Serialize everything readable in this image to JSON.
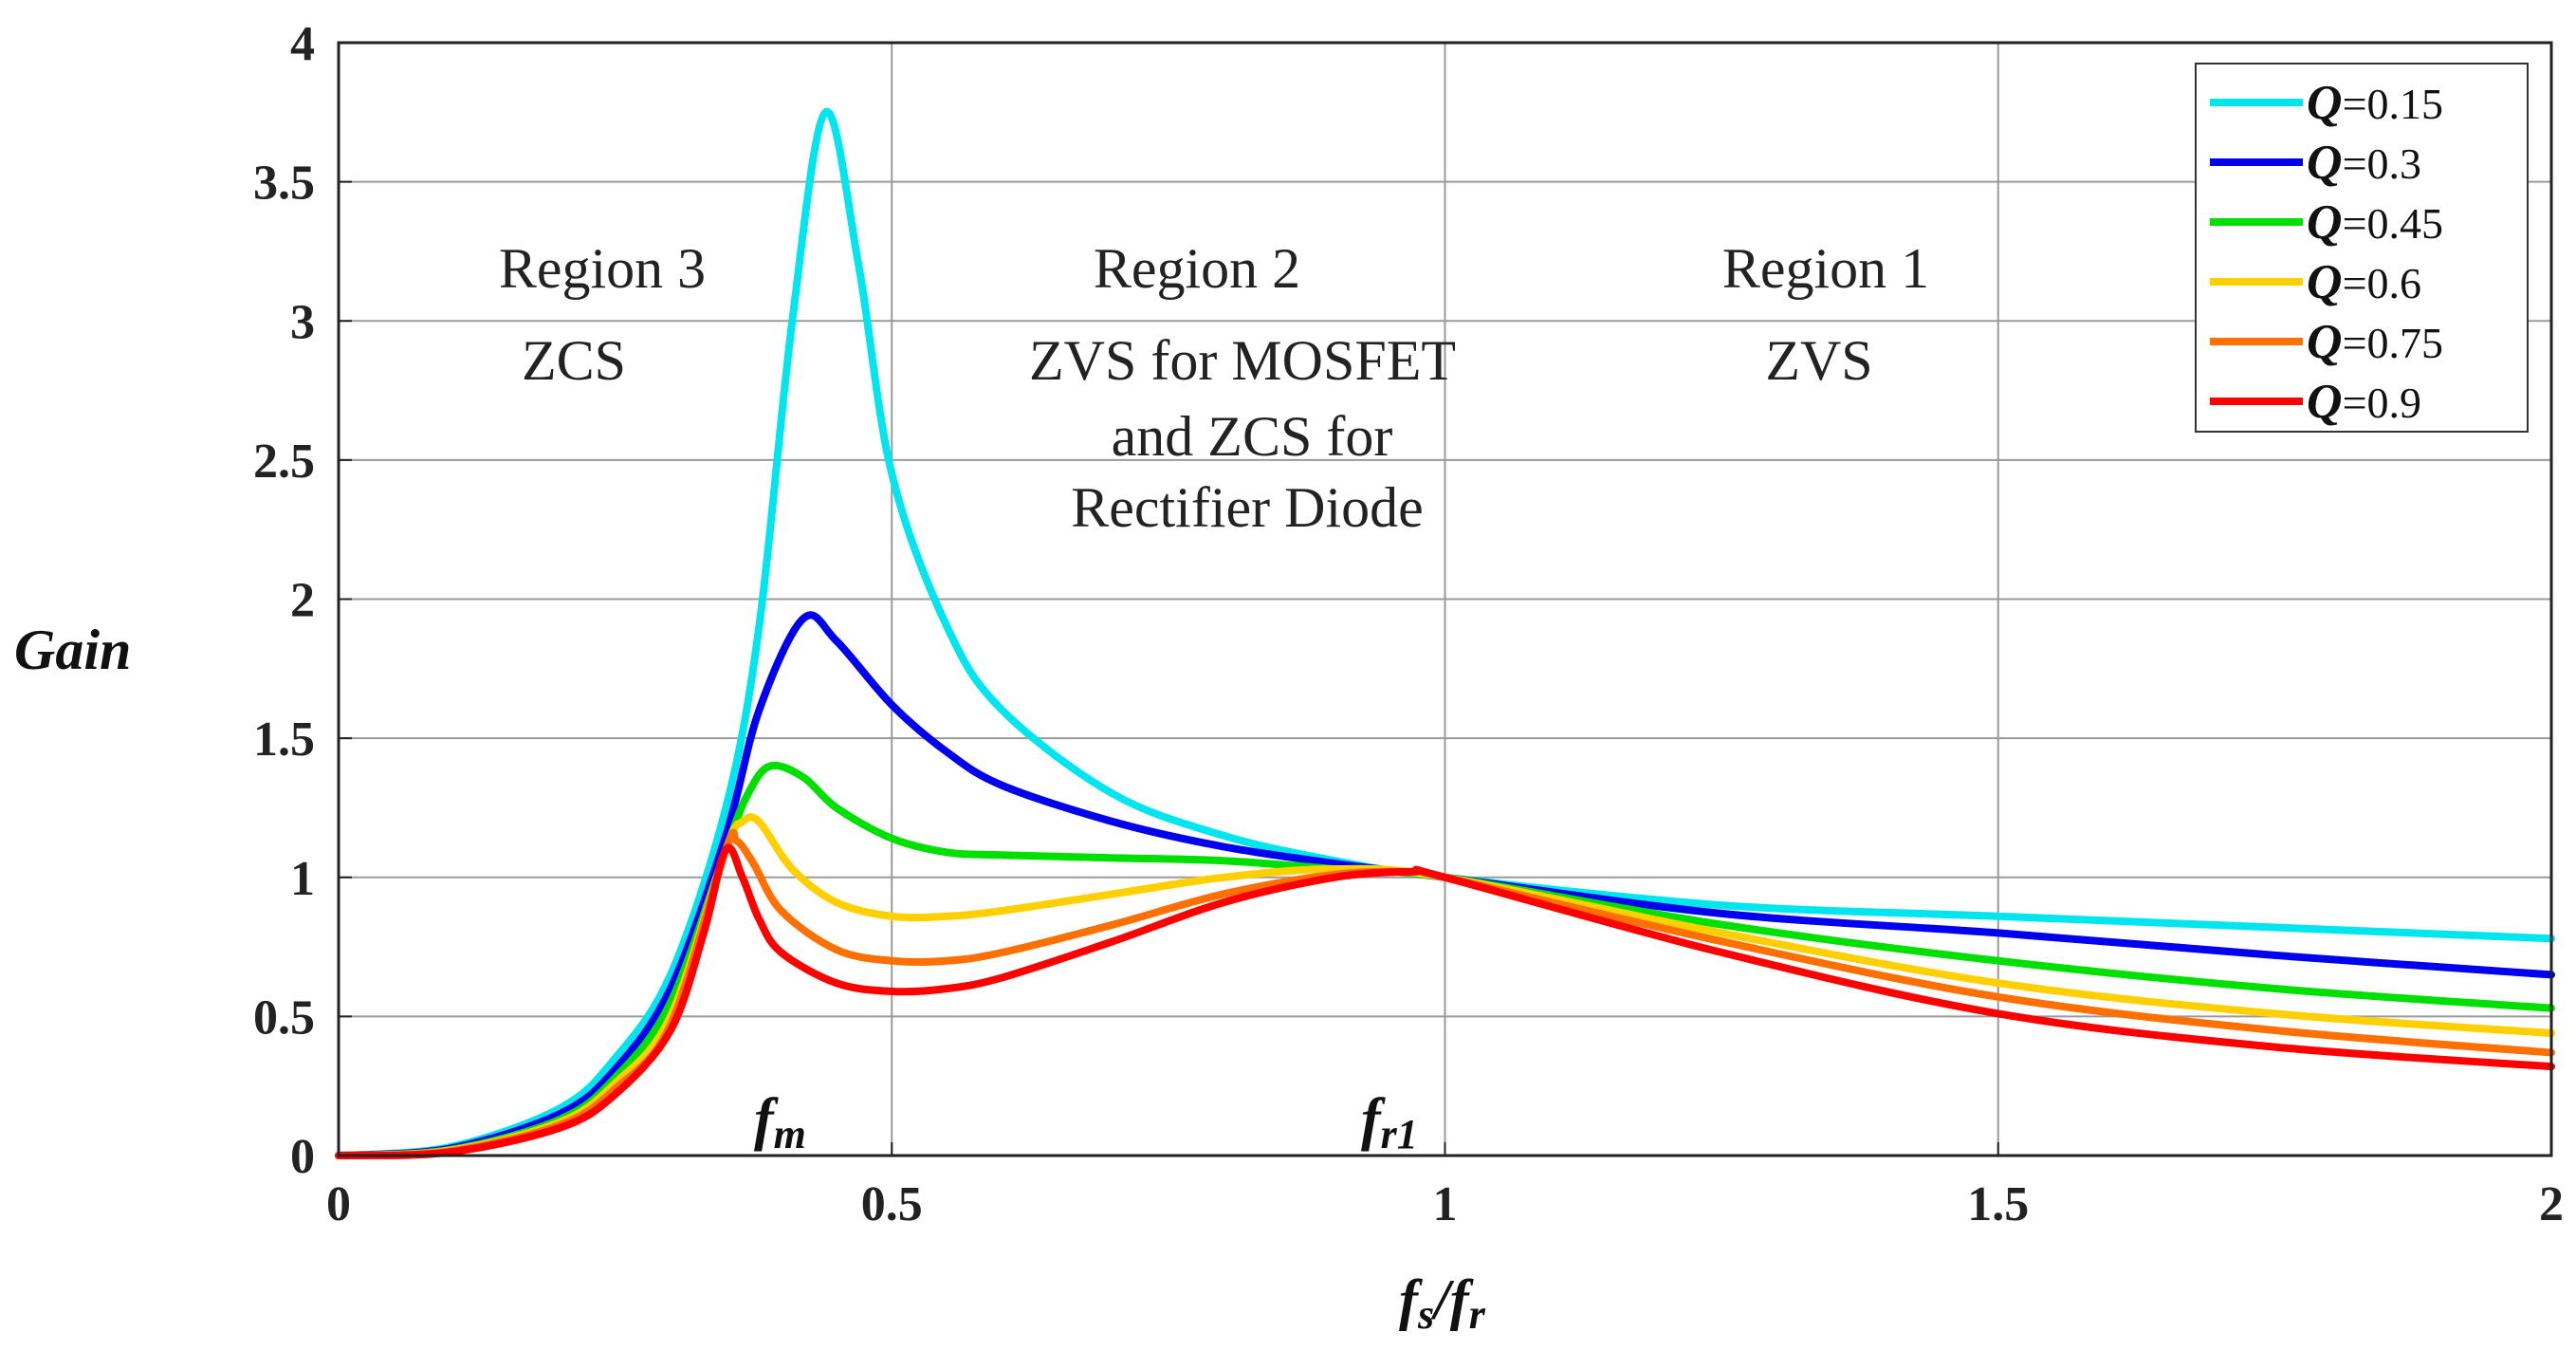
{
  "chart_data": {
    "type": "line",
    "xlabel": "fs/fr",
    "xlabel_main": "f",
    "xlabel_sub1": "s",
    "xlabel_sep": "/f",
    "xlabel_sub2": "r",
    "ylabel": "Gain",
    "xlim": [
      0,
      2
    ],
    "ylim": [
      0,
      4
    ],
    "xticks": [
      "0",
      "0.5",
      "1",
      "1.5",
      "2"
    ],
    "yticks": [
      "0",
      "0.5",
      "1",
      "1.5",
      "2",
      "2.5",
      "3",
      "3.5",
      "4"
    ],
    "grid": true,
    "legend_position": "top-right",
    "legend_prefix": "Q",
    "series": [
      {
        "name": "=0.15",
        "color": "#00e5ee",
        "x": [
          0,
          0.1,
          0.2,
          0.25,
          0.3,
          0.35,
          0.38,
          0.41,
          0.44,
          0.47,
          0.5,
          0.55,
          0.6,
          0.7,
          0.8,
          0.9,
          1.0,
          1.25,
          1.5,
          1.75,
          2.0
        ],
        "y": [
          0,
          0.03,
          0.17,
          0.35,
          0.65,
          1.25,
          1.9,
          3.0,
          3.75,
          3.2,
          2.45,
          1.9,
          1.6,
          1.3,
          1.15,
          1.06,
          1.0,
          0.9,
          0.86,
          0.82,
          0.78
        ]
      },
      {
        "name": "=0.3",
        "color": "#0000ee",
        "x": [
          0,
          0.1,
          0.2,
          0.25,
          0.3,
          0.35,
          0.38,
          0.42,
          0.45,
          0.5,
          0.55,
          0.6,
          0.7,
          0.8,
          0.9,
          1.0,
          1.25,
          1.5,
          1.75,
          2.0
        ],
        "y": [
          0,
          0.025,
          0.15,
          0.31,
          0.6,
          1.15,
          1.6,
          1.93,
          1.85,
          1.62,
          1.45,
          1.33,
          1.2,
          1.11,
          1.05,
          1.0,
          0.87,
          0.8,
          0.72,
          0.65
        ]
      },
      {
        "name": "=0.45",
        "color": "#00e000",
        "x": [
          0,
          0.1,
          0.2,
          0.25,
          0.3,
          0.35,
          0.37,
          0.39,
          0.42,
          0.45,
          0.5,
          0.55,
          0.6,
          0.7,
          0.8,
          0.9,
          1.0,
          1.25,
          1.5,
          1.75,
          2.0
        ],
        "y": [
          0,
          0.02,
          0.13,
          0.28,
          0.55,
          1.1,
          1.3,
          1.4,
          1.36,
          1.25,
          1.14,
          1.09,
          1.08,
          1.07,
          1.06,
          1.03,
          1.0,
          0.83,
          0.7,
          0.6,
          0.53
        ]
      },
      {
        "name": "=0.6",
        "color": "#ffd000",
        "x": [
          0,
          0.1,
          0.2,
          0.25,
          0.3,
          0.35,
          0.365,
          0.38,
          0.41,
          0.45,
          0.5,
          0.55,
          0.6,
          0.7,
          0.8,
          0.9,
          1.0,
          1.25,
          1.5,
          1.75,
          2.0
        ],
        "y": [
          0,
          0.018,
          0.12,
          0.26,
          0.5,
          1.1,
          1.2,
          1.2,
          1.03,
          0.91,
          0.86,
          0.86,
          0.88,
          0.94,
          1.0,
          1.03,
          1.0,
          0.8,
          0.62,
          0.51,
          0.44
        ]
      },
      {
        "name": "=0.75",
        "color": "#ff7000",
        "x": [
          0,
          0.1,
          0.2,
          0.25,
          0.3,
          0.35,
          0.36,
          0.375,
          0.4,
          0.45,
          0.5,
          0.55,
          0.6,
          0.7,
          0.8,
          0.9,
          0.97,
          1.0,
          1.25,
          1.5,
          1.75,
          2.0
        ],
        "y": [
          0,
          0.015,
          0.11,
          0.24,
          0.47,
          1.1,
          1.13,
          1.05,
          0.88,
          0.74,
          0.7,
          0.7,
          0.73,
          0.83,
          0.94,
          1.01,
          1.02,
          1.0,
          0.77,
          0.57,
          0.45,
          0.37
        ]
      },
      {
        "name": "=0.9",
        "color": "#ff0000",
        "x": [
          0,
          0.1,
          0.2,
          0.25,
          0.3,
          0.33,
          0.35,
          0.365,
          0.38,
          0.4,
          0.45,
          0.5,
          0.55,
          0.6,
          0.7,
          0.8,
          0.9,
          0.97,
          1.0,
          1.25,
          1.5,
          1.75,
          2.0
        ],
        "y": [
          0,
          0.012,
          0.1,
          0.22,
          0.45,
          0.8,
          1.1,
          1.0,
          0.85,
          0.73,
          0.62,
          0.59,
          0.6,
          0.64,
          0.77,
          0.91,
          1.0,
          1.02,
          1.0,
          0.73,
          0.51,
          0.39,
          0.32
        ]
      }
    ],
    "regions": [
      {
        "title": "Region 3",
        "lines": [
          "ZCS"
        ]
      },
      {
        "title": "Region 2",
        "lines": [
          "ZVS for MOSFET",
          "and ZCS for",
          "Rectifier Diode"
        ]
      },
      {
        "title": "Region 1",
        "lines": [
          "ZVS"
        ]
      }
    ],
    "annotations": [
      {
        "main": "f",
        "sub": "m"
      },
      {
        "main": "f",
        "sub": "r1"
      }
    ]
  }
}
